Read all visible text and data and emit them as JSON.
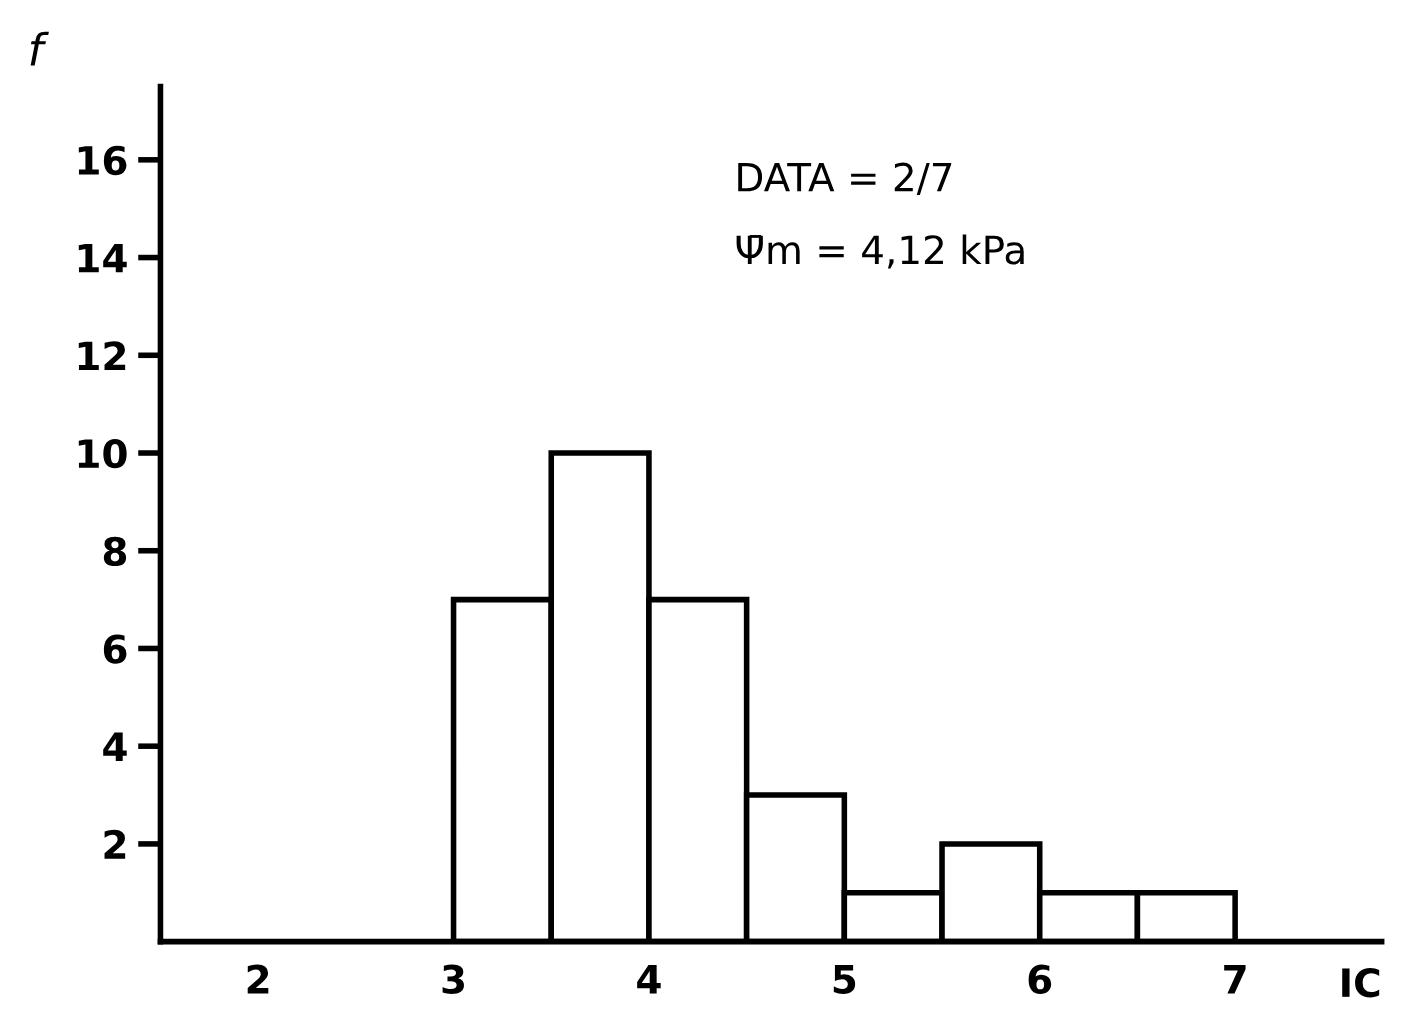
{
  "chart_data": {
    "type": "histogram",
    "bins": [
      3,
      3.5,
      4,
      4.5,
      5,
      5.5,
      6,
      6.5,
      7
    ],
    "values": [
      7,
      10,
      7,
      3,
      1,
      2,
      1,
      1
    ],
    "color": "#ffffff",
    "xlim": [
      1.5,
      7.75
    ],
    "xticks": [
      2,
      3,
      4,
      5,
      6,
      7
    ],
    "ylim": [
      0,
      17.5
    ],
    "yticks": [
      2,
      4,
      6,
      8,
      10,
      12,
      14,
      16
    ],
    "xlabel": "IC",
    "ylabel": "f",
    "annotations": [
      "DATA = 2/7",
      "Ψ̄m = 4,12 kPa"
    ],
    "grid": false
  }
}
